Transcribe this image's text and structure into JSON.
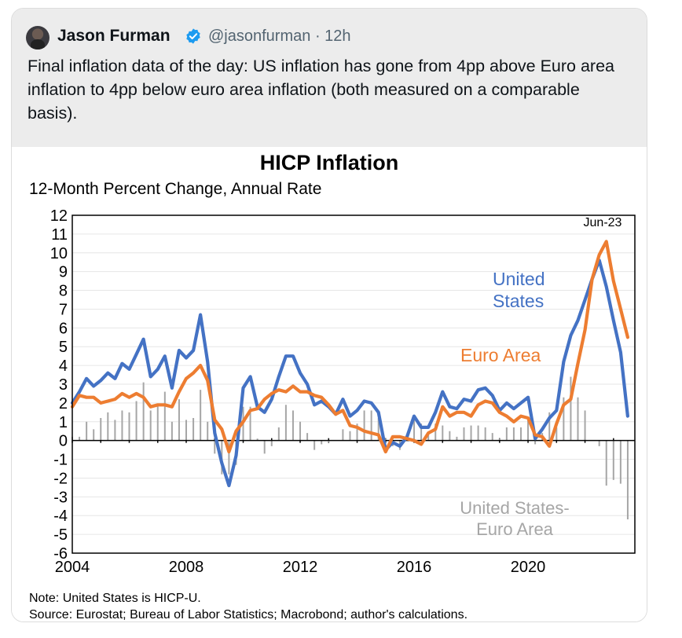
{
  "tweet": {
    "author_name": "Jason Furman",
    "handle": "@jasonfurman",
    "time": "12h",
    "text": "Final inflation data of the day: US inflation has gone from 4pp above Euro area inflation to 4pp below euro area inflation (both measured on a comparable basis)."
  },
  "chart_data": {
    "type": "line",
    "title": "HICP Inflation",
    "subtitle": "12-Month Percent Change, Annual Rate",
    "xlabel": "",
    "ylabel": "",
    "xlim": [
      2004,
      2023.75
    ],
    "ylim": [
      -6,
      12
    ],
    "x_ticks": [
      "2004",
      "2008",
      "2012",
      "2016",
      "2020"
    ],
    "y_ticks": [
      "12",
      "11",
      "10",
      "9",
      "8",
      "7",
      "6",
      "5",
      "4",
      "3",
      "2",
      "1",
      "0",
      "-1",
      "-2",
      "-3",
      "-4",
      "-5",
      "-6"
    ],
    "annotation": "Jun-23",
    "labels": {
      "us": [
        "United",
        "States"
      ],
      "ea": "Euro Area",
      "diff": [
        "United States-",
        "Euro Area"
      ]
    },
    "note": "Note: United States is HICP-U.",
    "source": "Source: Eurostat; Bureau of Labor Statistics; Macrobond; author's calculations.",
    "series": [
      {
        "name": "United States",
        "color": "#4472C4",
        "x": [
          2004.0,
          2004.25,
          2004.5,
          2004.75,
          2005.0,
          2005.25,
          2005.5,
          2005.75,
          2006.0,
          2006.25,
          2006.5,
          2006.75,
          2007.0,
          2007.25,
          2007.5,
          2007.75,
          2008.0,
          2008.25,
          2008.5,
          2008.75,
          2009.0,
          2009.25,
          2009.5,
          2009.75,
          2010.0,
          2010.25,
          2010.5,
          2010.75,
          2011.0,
          2011.25,
          2011.5,
          2011.75,
          2012.0,
          2012.25,
          2012.5,
          2012.75,
          2013.0,
          2013.25,
          2013.5,
          2013.75,
          2014.0,
          2014.25,
          2014.5,
          2014.75,
          2015.0,
          2015.25,
          2015.5,
          2015.75,
          2016.0,
          2016.25,
          2016.5,
          2016.75,
          2017.0,
          2017.25,
          2017.5,
          2017.75,
          2018.0,
          2018.25,
          2018.5,
          2018.75,
          2019.0,
          2019.25,
          2019.5,
          2019.75,
          2020.0,
          2020.25,
          2020.5,
          2020.75,
          2021.0,
          2021.25,
          2021.5,
          2021.75,
          2022.0,
          2022.25,
          2022.5,
          2022.75,
          2023.0,
          2023.25,
          2023.5
        ],
        "values": [
          2.0,
          2.6,
          3.3,
          2.9,
          3.2,
          3.6,
          3.3,
          4.1,
          3.8,
          4.6,
          5.4,
          3.4,
          3.8,
          4.5,
          2.8,
          4.8,
          4.4,
          4.8,
          6.7,
          4.2,
          0.4,
          -1.2,
          -2.4,
          -0.8,
          2.8,
          3.4,
          1.8,
          1.5,
          2.2,
          3.4,
          4.5,
          4.5,
          3.6,
          3.0,
          1.9,
          2.1,
          1.8,
          1.4,
          2.2,
          1.3,
          1.6,
          2.1,
          2.0,
          1.5,
          -0.5,
          -0.1,
          -0.3,
          0.2,
          1.3,
          0.7,
          0.7,
          1.5,
          2.6,
          1.8,
          1.7,
          2.2,
          2.1,
          2.7,
          2.8,
          2.4,
          1.6,
          2.0,
          1.7,
          2.0,
          2.3,
          0.1,
          0.6,
          1.2,
          1.6,
          4.2,
          5.6,
          6.4,
          7.5,
          8.6,
          9.6,
          8.2,
          6.4,
          4.7,
          1.3
        ]
      },
      {
        "name": "Euro Area",
        "color": "#ED7D31",
        "x": [
          2004.0,
          2004.25,
          2004.5,
          2004.75,
          2005.0,
          2005.25,
          2005.5,
          2005.75,
          2006.0,
          2006.25,
          2006.5,
          2006.75,
          2007.0,
          2007.25,
          2007.5,
          2007.75,
          2008.0,
          2008.25,
          2008.5,
          2008.75,
          2009.0,
          2009.25,
          2009.5,
          2009.75,
          2010.0,
          2010.25,
          2010.5,
          2010.75,
          2011.0,
          2011.25,
          2011.5,
          2011.75,
          2012.0,
          2012.25,
          2012.5,
          2012.75,
          2013.0,
          2013.25,
          2013.5,
          2013.75,
          2014.0,
          2014.25,
          2014.5,
          2014.75,
          2015.0,
          2015.25,
          2015.5,
          2015.75,
          2016.0,
          2016.25,
          2016.5,
          2016.75,
          2017.0,
          2017.25,
          2017.5,
          2017.75,
          2018.0,
          2018.25,
          2018.5,
          2018.75,
          2019.0,
          2019.25,
          2019.5,
          2019.75,
          2020.0,
          2020.25,
          2020.5,
          2020.75,
          2021.0,
          2021.25,
          2021.5,
          2021.75,
          2022.0,
          2022.25,
          2022.5,
          2022.75,
          2023.0,
          2023.25,
          2023.5
        ],
        "values": [
          1.8,
          2.4,
          2.3,
          2.3,
          2.0,
          2.1,
          2.2,
          2.5,
          2.3,
          2.5,
          2.3,
          1.8,
          1.9,
          1.9,
          1.8,
          2.6,
          3.3,
          3.6,
          4.0,
          3.2,
          1.1,
          0.6,
          -0.6,
          0.5,
          1.0,
          1.6,
          1.7,
          2.2,
          2.5,
          2.7,
          2.6,
          2.9,
          2.6,
          2.6,
          2.4,
          2.3,
          1.9,
          1.4,
          1.6,
          0.8,
          0.7,
          0.5,
          0.4,
          0.3,
          -0.6,
          0.2,
          0.2,
          0.1,
          0.0,
          -0.2,
          0.4,
          0.6,
          1.8,
          1.3,
          1.5,
          1.5,
          1.3,
          1.9,
          2.1,
          2.0,
          1.5,
          1.3,
          1.0,
          1.3,
          1.2,
          0.3,
          0.2,
          -0.3,
          0.9,
          1.9,
          2.2,
          4.1,
          5.9,
          8.6,
          9.9,
          10.6,
          8.5,
          7.0,
          5.5
        ]
      },
      {
        "name": "United States-Euro Area",
        "color": "#A6A6A6",
        "x": [
          2004.0,
          2004.25,
          2004.5,
          2004.75,
          2005.0,
          2005.25,
          2005.5,
          2005.75,
          2006.0,
          2006.25,
          2006.5,
          2006.75,
          2007.0,
          2007.25,
          2007.5,
          2007.75,
          2008.0,
          2008.25,
          2008.5,
          2008.75,
          2009.0,
          2009.25,
          2009.5,
          2009.75,
          2010.0,
          2010.25,
          2010.5,
          2010.75,
          2011.0,
          2011.25,
          2011.5,
          2011.75,
          2012.0,
          2012.25,
          2012.5,
          2012.75,
          2013.0,
          2013.25,
          2013.5,
          2013.75,
          2014.0,
          2014.25,
          2014.5,
          2014.75,
          2015.0,
          2015.25,
          2015.5,
          2015.75,
          2016.0,
          2016.25,
          2016.5,
          2016.75,
          2017.0,
          2017.25,
          2017.5,
          2017.75,
          2018.0,
          2018.25,
          2018.5,
          2018.75,
          2019.0,
          2019.25,
          2019.5,
          2019.75,
          2020.0,
          2020.25,
          2020.5,
          2020.75,
          2021.0,
          2021.25,
          2021.5,
          2021.75,
          2022.0,
          2022.25,
          2022.5,
          2022.75,
          2023.0,
          2023.25,
          2023.5
        ],
        "values": [
          0.2,
          0.2,
          1.0,
          0.6,
          1.2,
          1.5,
          1.1,
          1.6,
          1.5,
          2.1,
          3.1,
          1.6,
          1.9,
          2.6,
          1.0,
          2.2,
          1.1,
          1.2,
          2.7,
          1.0,
          -0.7,
          -1.8,
          -1.8,
          -1.3,
          1.8,
          1.8,
          0.1,
          -0.7,
          -0.3,
          0.7,
          1.9,
          1.6,
          1.0,
          0.4,
          -0.5,
          -0.2,
          -0.1,
          0.0,
          0.6,
          0.5,
          0.9,
          1.6,
          1.6,
          1.2,
          0.1,
          -0.3,
          -0.5,
          0.1,
          1.3,
          0.9,
          0.3,
          0.9,
          0.8,
          0.5,
          0.2,
          0.7,
          0.8,
          0.8,
          0.7,
          0.4,
          0.1,
          0.7,
          0.7,
          0.7,
          1.1,
          -0.2,
          0.4,
          1.5,
          0.7,
          2.3,
          3.4,
          2.3,
          1.6,
          0.0,
          -0.3,
          -2.4,
          -2.1,
          -2.3,
          -4.2
        ]
      }
    ]
  }
}
